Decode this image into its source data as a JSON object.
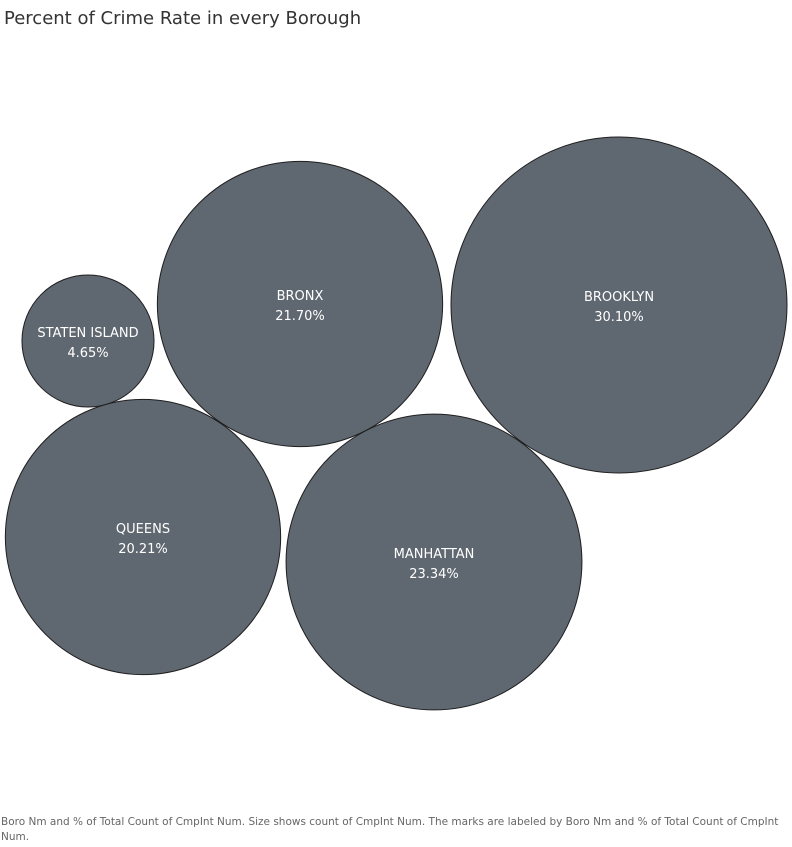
{
  "title": "Percent of Crime Rate in every Borough",
  "footnote": "Boro Nm and % of Total Count of CmpInt Num.  Size shows count of CmpInt Num.  The marks are labeled by Boro Nm and % of Total Count of CmpInt Num.",
  "colors": {
    "bubble_fill": "#5f6770",
    "bubble_stroke": "#1f1f1f",
    "label": "#ffffff"
  },
  "chart_data": {
    "type": "packed-bubble",
    "title": "Percent of Crime Rate in every Borough",
    "size_measure": "count of CmpInt Num",
    "label_fields": [
      "Boro Nm",
      "% of Total Count of CmpInt Num"
    ],
    "categories": [
      "STATEN ISLAND",
      "BRONX",
      "BROOKLYN",
      "QUEENS",
      "MANHATTAN"
    ],
    "values": [
      4.65,
      21.7,
      30.1,
      20.21,
      23.34
    ],
    "value_labels": [
      "4.65%",
      "21.70%",
      "30.10%",
      "20.21%",
      "23.34%"
    ],
    "legend": "none"
  }
}
